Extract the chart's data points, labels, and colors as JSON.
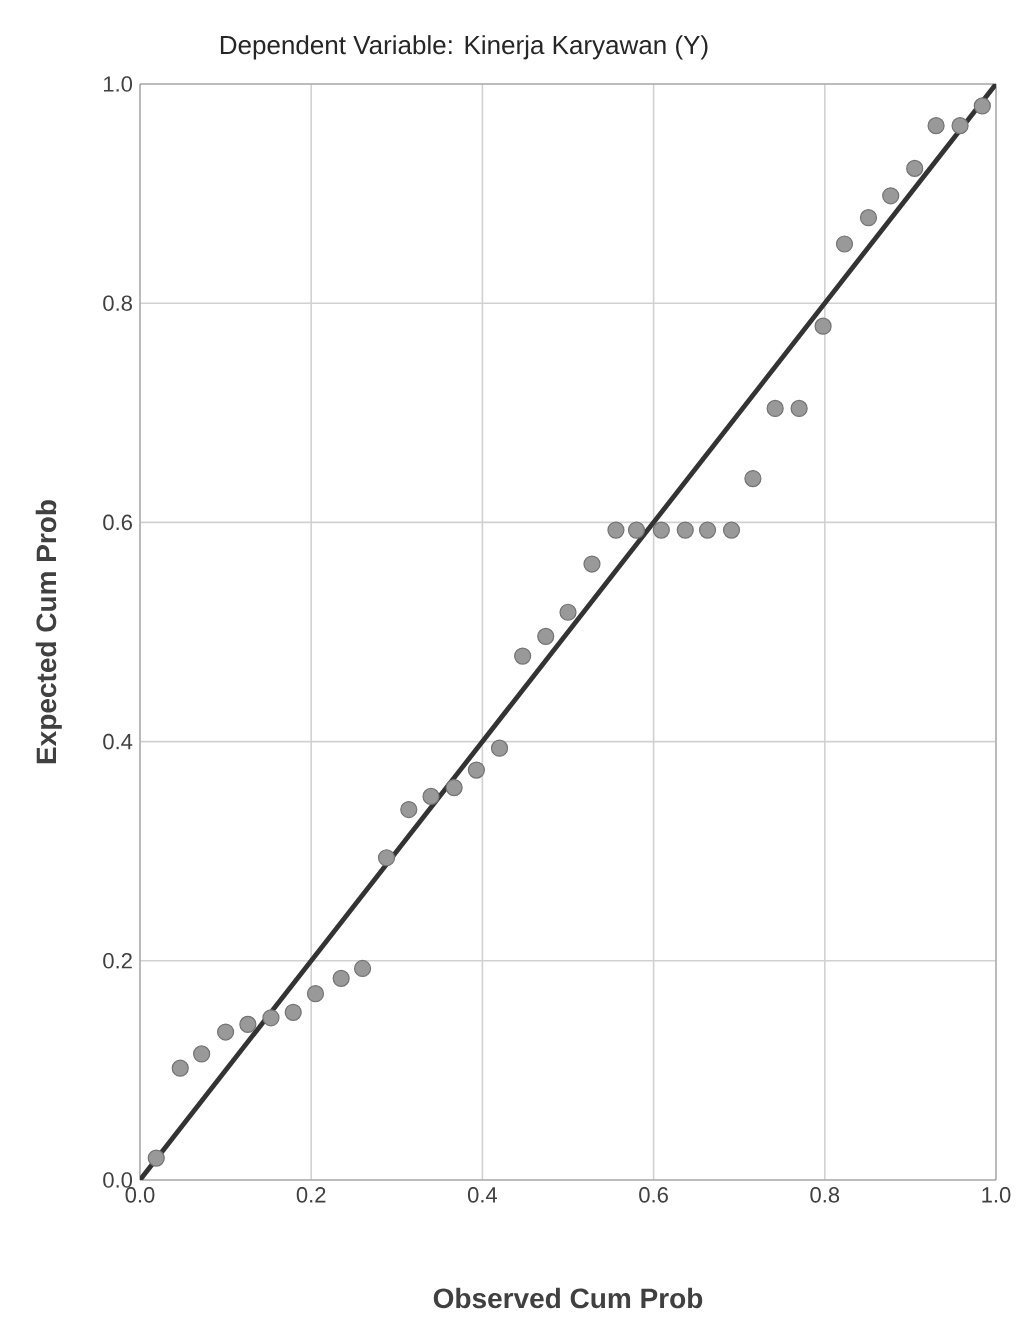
{
  "chart_data": {
    "type": "scatter",
    "title": "Dependent Variable: Kinerja Karyawan (Y)",
    "xlabel": "Observed Cum Prob",
    "ylabel": "Expected Cum Prob",
    "xlim": [
      0,
      1
    ],
    "ylim": [
      0,
      1
    ],
    "xticks": [
      {
        "value": 0,
        "label": "0.0"
      },
      {
        "value": 0.2,
        "label": "0.2"
      },
      {
        "value": 0.4,
        "label": "0.4"
      },
      {
        "value": 0.6,
        "label": "0.6"
      },
      {
        "value": 0.8,
        "label": "0.8"
      },
      {
        "value": 1,
        "label": "1.0"
      }
    ],
    "yticks": [
      {
        "value": 0,
        "label": "0.0"
      },
      {
        "value": 0.2,
        "label": "0.2"
      },
      {
        "value": 0.4,
        "label": "0.4"
      },
      {
        "value": 0.6,
        "label": "0.6"
      },
      {
        "value": 0.8,
        "label": "0.8"
      },
      {
        "value": 1,
        "label": "1.0"
      }
    ],
    "grid": true,
    "series": [
      {
        "marker": "circle",
        "color": "#999999",
        "x": [
          0.019,
          0.047,
          0.072,
          0.1,
          0.126,
          0.153,
          0.179,
          0.205,
          0.235,
          0.26,
          0.288,
          0.314,
          0.34,
          0.367,
          0.393,
          0.42,
          0.447,
          0.474,
          0.5,
          0.528,
          0.556,
          0.58,
          0.609,
          0.637,
          0.663,
          0.691,
          0.716,
          0.742,
          0.77,
          0.798,
          0.823,
          0.851,
          0.877,
          0.905,
          0.93,
          0.958,
          0.984
        ],
        "values": [
          0.02,
          0.102,
          0.115,
          0.135,
          0.142,
          0.148,
          0.153,
          0.17,
          0.184,
          0.193,
          0.294,
          0.338,
          0.35,
          0.358,
          0.374,
          0.394,
          0.478,
          0.496,
          0.518,
          0.562,
          0.593,
          0.593,
          0.593,
          0.593,
          0.593,
          0.593,
          0.64,
          0.704,
          0.704,
          0.779,
          0.854,
          0.878,
          0.898,
          0.923,
          0.962,
          0.962,
          0.98
        ]
      },
      {
        "type": "line",
        "marker": "none",
        "color": "#333333",
        "x": [
          0,
          1
        ],
        "values": [
          0,
          1
        ]
      }
    ]
  }
}
